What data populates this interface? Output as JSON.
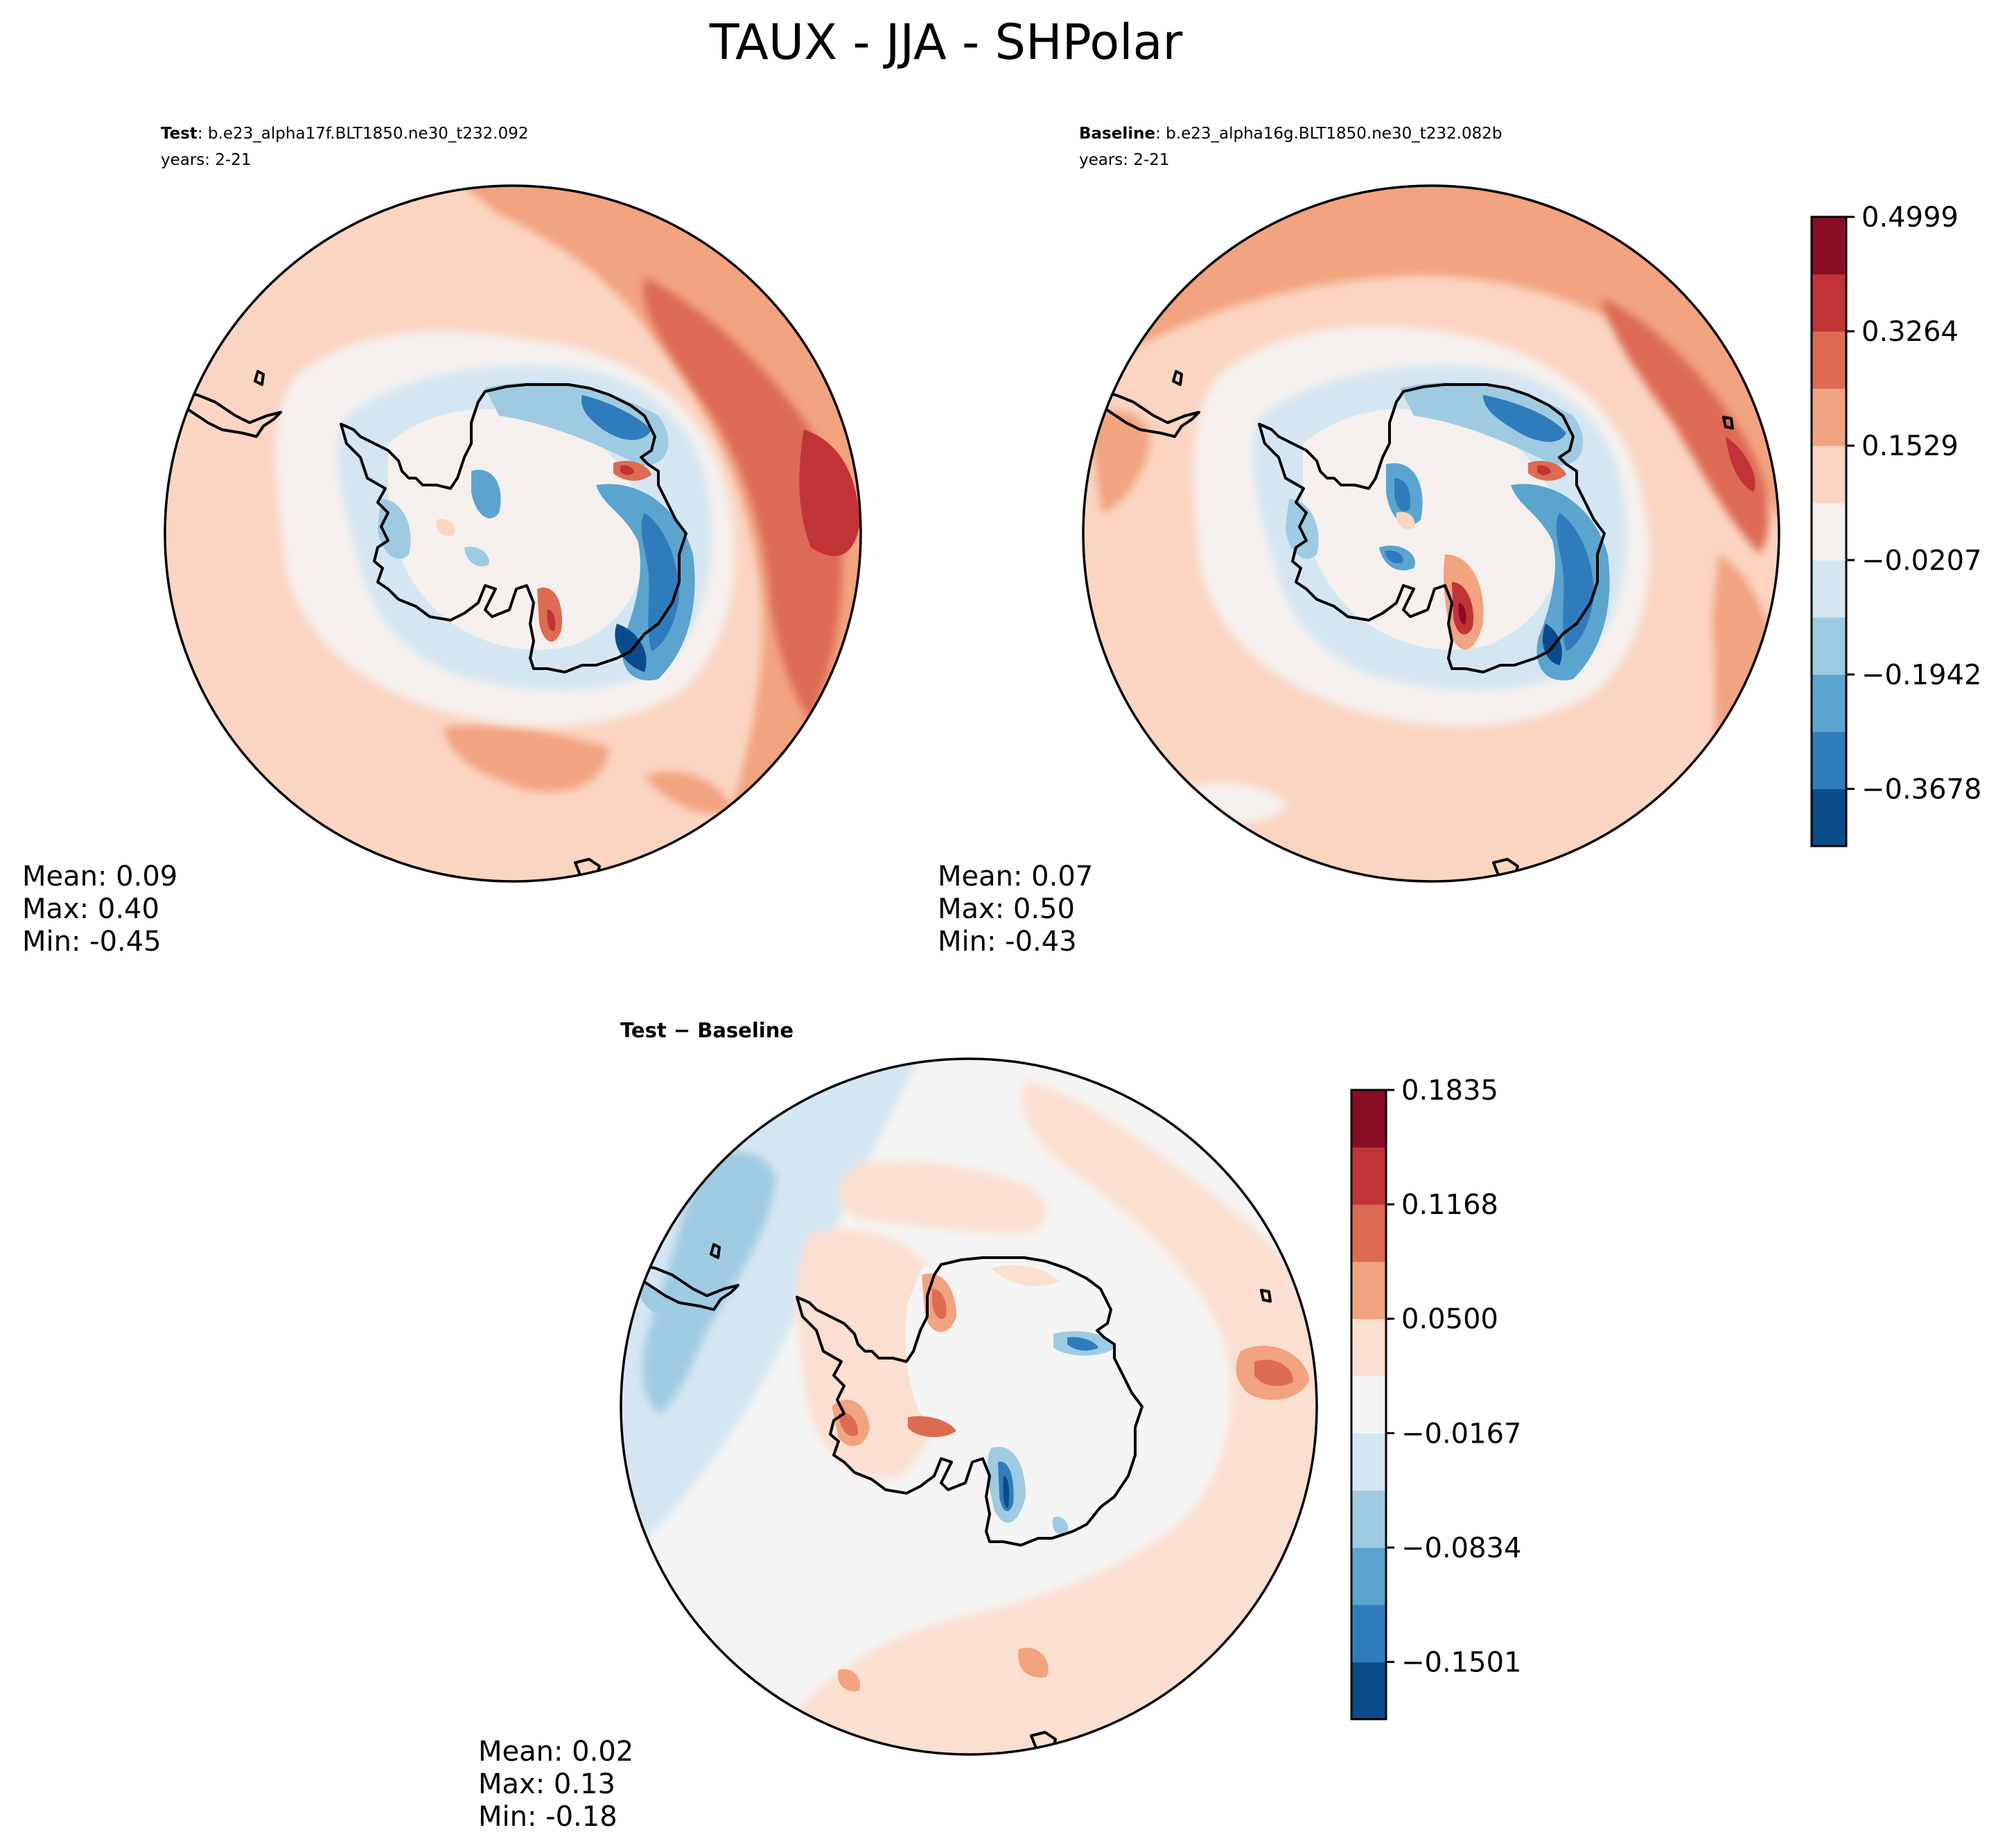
{
  "figure": {
    "title": "TAUX - JJA - SHPolar"
  },
  "panels": {
    "test": {
      "label": "Test",
      "case": ": b.e23_alpha17f.BLT1850.ne30_t232.092",
      "years": "years: 2-21",
      "stats": {
        "mean": "Mean:  0.09",
        "max": "Max:  0.40",
        "min": "Min: -0.45"
      }
    },
    "baseline": {
      "label": "Baseline",
      "case": ": b.e23_alpha16g.BLT1850.ne30_t232.082b",
      "years": "years: 2-21",
      "stats": {
        "mean": "Mean:  0.07",
        "max": "Max:  0.50",
        "min": "Min: -0.43"
      }
    },
    "diff": {
      "title": "Test − Baseline",
      "stats": {
        "mean": "Mean:  0.02",
        "max": "Max:  0.13",
        "min": "Min: -0.18"
      }
    }
  },
  "colorbars": {
    "main": {
      "tick_labels": [
        "0.4999",
        "0.3264",
        "0.1529",
        "−0.0207",
        "−0.1942",
        "−0.3678"
      ],
      "levels": 11,
      "colors": [
        "#0b4b8a",
        "#2f7cbd",
        "#5ba4cf",
        "#9fcbe2",
        "#d4e6f2",
        "#f5f0ee",
        "#fbd5c2",
        "#f2a37f",
        "#dd6b52",
        "#c23337",
        "#8a0d26"
      ]
    },
    "diff": {
      "tick_labels": [
        "0.1835",
        "0.1168",
        "0.0500",
        "−0.0167",
        "−0.0834",
        "−0.1501"
      ],
      "levels": 11,
      "colors": [
        "#0b4b8a",
        "#2f7cbd",
        "#5ba4cf",
        "#9fcbe2",
        "#d4e6f2",
        "#f4f4f4",
        "#fbdfd0",
        "#f2a37f",
        "#dd6b52",
        "#c23337",
        "#8a0d26"
      ]
    }
  }
}
